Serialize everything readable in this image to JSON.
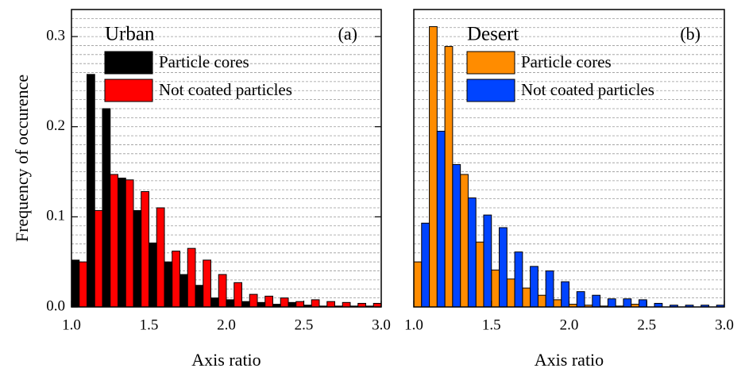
{
  "chart_data": [
    {
      "type": "histogram",
      "title": "Urban",
      "title_color": "#000000",
      "annotation": "(a)",
      "xlabel": "Axis ratio",
      "ylabel": "Frequency of occurence",
      "bins": [
        1.0,
        1.1,
        1.2,
        1.3,
        1.4,
        1.5,
        1.6,
        1.7,
        1.8,
        1.9,
        2.0,
        2.1,
        2.2,
        2.3,
        2.4,
        2.5,
        2.6,
        2.7,
        2.8,
        2.9,
        3.0
      ],
      "series": [
        {
          "name": "Particle cores",
          "color": "#000000",
          "values": [
            0.052,
            0.258,
            0.22,
            0.143,
            0.107,
            0.071,
            0.05,
            0.036,
            0.024,
            0.01,
            0.008,
            0.006,
            0.005,
            0.003,
            0.005,
            0.002,
            0.001,
            0.001,
            0.001,
            0.001
          ]
        },
        {
          "name": "Not coated particles",
          "color": "#ff0000",
          "values": [
            0.05,
            0.107,
            0.147,
            0.141,
            0.128,
            0.11,
            0.062,
            0.065,
            0.052,
            0.036,
            0.027,
            0.014,
            0.012,
            0.01,
            0.006,
            0.008,
            0.006,
            0.005,
            0.004,
            0.004
          ]
        }
      ],
      "xlim": [
        1.0,
        3.0
      ],
      "xticks": [
        {
          "value": 1.0,
          "label": "1.0"
        },
        1.5,
        {
          "value": 2.0,
          "label": "2.0"
        },
        2.5,
        {
          "value": 3.0,
          "label": "3.0"
        }
      ],
      "ylim": [
        0,
        0.33
      ],
      "yticks": [
        {
          "value": 0,
          "label": "0.0"
        },
        0.1,
        0.2,
        0.3
      ],
      "ygrid": [
        0.01,
        0.02,
        0.03,
        0.04,
        0.05,
        0.06,
        0.07,
        0.08,
        0.09,
        0.1,
        0.11,
        0.12,
        0.13,
        0.14,
        0.15,
        0.16,
        0.17,
        0.18,
        0.19,
        0.2,
        0.21,
        0.22,
        0.23,
        0.24,
        0.25,
        0.26,
        0.27,
        0.28,
        0.29,
        0.3,
        0.31,
        0.32
      ]
    },
    {
      "type": "histogram",
      "title": "Desert",
      "title_color": "#ff8c00",
      "annotation": "(b)",
      "xlabel": "Axis ratio",
      "bins": [
        1.0,
        1.1,
        1.2,
        1.3,
        1.4,
        1.5,
        1.6,
        1.7,
        1.8,
        1.9,
        2.0,
        2.1,
        2.2,
        2.3,
        2.4,
        2.5,
        2.6,
        2.7,
        2.8,
        2.9,
        3.0
      ],
      "series": [
        {
          "name": "Particle cores",
          "color": "#ff8c00",
          "values": [
            0.05,
            0.311,
            0.289,
            0.147,
            0.072,
            0.041,
            0.031,
            0.021,
            0.013,
            0.008,
            0.003,
            0.002,
            0.001,
            0.001,
            0.003,
            0,
            0,
            0,
            0,
            0
          ]
        },
        {
          "name": "Not coated particles",
          "color": "#0044ff",
          "values": [
            0.093,
            0.195,
            0.158,
            0.121,
            0.102,
            0.088,
            0.061,
            0.045,
            0.04,
            0.028,
            0.017,
            0.013,
            0.009,
            0.009,
            0.008,
            0.004,
            0.002,
            0.002,
            0.002,
            0.002
          ]
        }
      ],
      "xlim": [
        1.0,
        3.0
      ],
      "xticks": [
        {
          "value": 1.0,
          "label": "1.0"
        },
        1.5,
        {
          "value": 2.0,
          "label": "2.0"
        },
        2.5,
        {
          "value": 3.0,
          "label": "3.0"
        }
      ],
      "ylim": [
        0,
        0.33
      ],
      "ygrid": [
        0.01,
        0.02,
        0.03,
        0.04,
        0.05,
        0.06,
        0.07,
        0.08,
        0.09,
        0.1,
        0.11,
        0.12,
        0.13,
        0.14,
        0.15,
        0.16,
        0.17,
        0.18,
        0.19,
        0.2,
        0.21,
        0.22,
        0.23,
        0.24,
        0.25,
        0.26,
        0.27,
        0.28,
        0.29,
        0.3,
        0.31,
        0.32
      ]
    }
  ]
}
